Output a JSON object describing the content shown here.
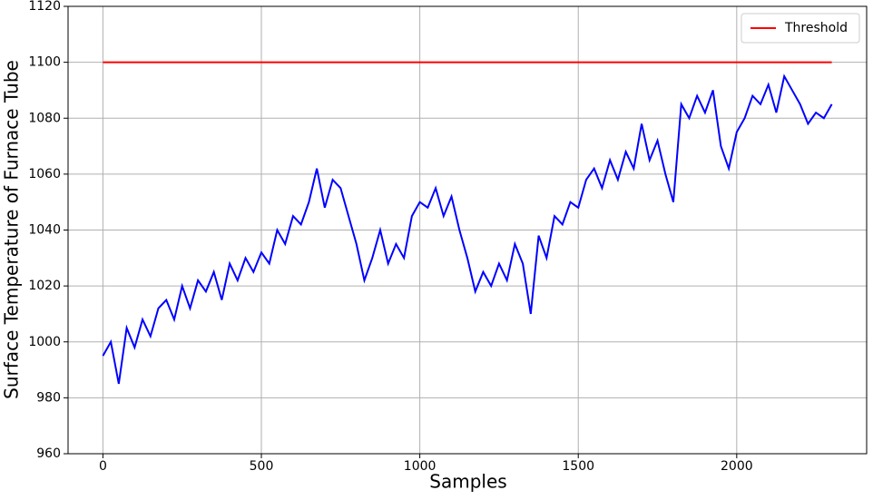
{
  "chart_data": {
    "type": "line",
    "xlabel": "Samples",
    "ylabel": "Surface Temperature of Furnace Tube",
    "xlim": [
      -110,
      2410
    ],
    "ylim": [
      960,
      1120
    ],
    "xticks": [
      0,
      500,
      1000,
      1500,
      2000
    ],
    "yticks": [
      960,
      980,
      1000,
      1020,
      1040,
      1060,
      1080,
      1100,
      1120
    ],
    "grid": true,
    "legend": "upper right",
    "series": [
      {
        "name": "Threshold",
        "color": "#ff0000",
        "x": [
          0,
          2300
        ],
        "values": [
          1100,
          1100
        ]
      },
      {
        "color": "#0000ff",
        "x": [
          0,
          25,
          50,
          75,
          100,
          125,
          150,
          175,
          200,
          225,
          250,
          275,
          300,
          325,
          350,
          375,
          400,
          425,
          450,
          475,
          500,
          525,
          550,
          575,
          600,
          625,
          650,
          675,
          700,
          725,
          750,
          775,
          800,
          825,
          850,
          875,
          900,
          925,
          950,
          975,
          1000,
          1025,
          1050,
          1075,
          1100,
          1125,
          1150,
          1175,
          1200,
          1225,
          1250,
          1275,
          1300,
          1325,
          1350,
          1375,
          1400,
          1425,
          1450,
          1475,
          1500,
          1525,
          1550,
          1575,
          1600,
          1625,
          1650,
          1675,
          1700,
          1725,
          1750,
          1775,
          1800,
          1825,
          1850,
          1875,
          1900,
          1925,
          1950,
          1975,
          2000,
          2025,
          2050,
          2075,
          2100,
          2125,
          2150,
          2175,
          2200,
          2225,
          2250,
          2275,
          2300
        ],
        "values": [
          995,
          1000,
          985,
          1005,
          998,
          1008,
          1002,
          1012,
          1015,
          1008,
          1020,
          1012,
          1022,
          1018,
          1025,
          1015,
          1028,
          1022,
          1030,
          1025,
          1032,
          1028,
          1040,
          1035,
          1045,
          1042,
          1050,
          1062,
          1048,
          1058,
          1055,
          1045,
          1035,
          1022,
          1030,
          1040,
          1028,
          1035,
          1030,
          1045,
          1050,
          1048,
          1055,
          1045,
          1052,
          1040,
          1030,
          1018,
          1025,
          1020,
          1028,
          1022,
          1035,
          1028,
          1010,
          1038,
          1030,
          1045,
          1042,
          1050,
          1048,
          1058,
          1062,
          1055,
          1065,
          1058,
          1068,
          1062,
          1078,
          1065,
          1072,
          1060,
          1050,
          1085,
          1080,
          1088,
          1082,
          1090,
          1070,
          1062,
          1075,
          1080,
          1088,
          1085,
          1092,
          1082,
          1095,
          1090,
          1085,
          1078,
          1082,
          1080,
          1085
        ]
      }
    ]
  }
}
